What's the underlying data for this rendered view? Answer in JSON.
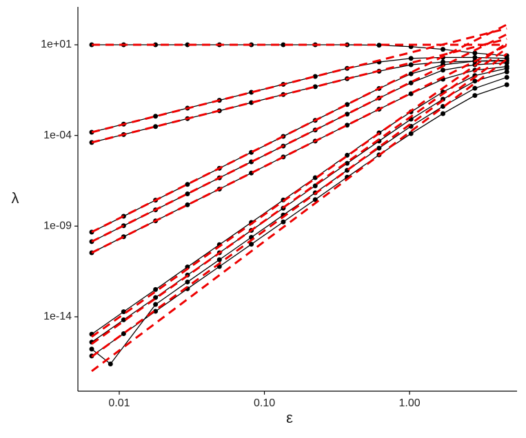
{
  "chart_data": {
    "type": "line",
    "xlabel": "ε",
    "ylabel": "λ",
    "xlog": true,
    "ylog": true,
    "xlim": [
      0.00519,
      5.5
    ],
    "ylim": [
      7.9e-19,
      1230
    ],
    "xticks": [
      {
        "value": 0.01,
        "label": "0.01"
      },
      {
        "value": 0.1,
        "label": "0.10"
      },
      {
        "value": 1,
        "label": "1.00"
      }
    ],
    "yticks": [
      {
        "value": 10,
        "label": "1e+01"
      },
      {
        "value": 0.0001,
        "label": "1e-04"
      },
      {
        "value": 1e-09,
        "label": "1e-09"
      },
      {
        "value": 1e-14,
        "label": "1e-14"
      }
    ],
    "series": [
      {
        "color": "#000000",
        "marker": "circle",
        "dashed": false,
        "x": [
          0.00646,
          0.01072,
          0.01778,
          0.02951,
          0.04898,
          0.08128,
          0.1349,
          0.2239,
          0.3715,
          0.6166,
          1.023,
          1.698,
          2.818,
          4.677
        ],
        "values": [
          10,
          10,
          10,
          10,
          10,
          10,
          10,
          10,
          10,
          9.5,
          7.9,
          5.6,
          3.5,
          2.5
        ]
      },
      {
        "color": "#000000",
        "marker": "circle",
        "dashed": false,
        "x": [
          0.00646,
          0.01072,
          0.01778,
          0.02951,
          0.04898,
          0.08128,
          0.1349,
          0.2239,
          0.3715,
          0.6166,
          1.023,
          1.698,
          2.818,
          4.677
        ],
        "values": [
          0.00015,
          0.00042,
          0.00115,
          0.0032,
          0.0087,
          0.024,
          0.066,
          0.18,
          0.5,
          1.12,
          1.78,
          2.0,
          2.0,
          1.78
        ]
      },
      {
        "color": "#000000",
        "marker": "circle",
        "dashed": false,
        "x": [
          0.00646,
          0.01072,
          0.01778,
          0.02951,
          0.04898,
          0.08128,
          0.1349,
          0.2239,
          0.3715,
          0.6166,
          1.023,
          1.698,
          2.818,
          4.677
        ],
        "values": [
          4.1e-05,
          0.000112,
          0.00031,
          0.00085,
          0.0023,
          0.0065,
          0.018,
          0.049,
          0.135,
          0.35,
          0.79,
          1.12,
          1.26,
          1.26
        ]
      },
      {
        "color": "#000000",
        "marker": "circle",
        "dashed": false,
        "x": [
          0.00646,
          0.01072,
          0.01778,
          0.02951,
          0.04898,
          0.08128,
          0.1349,
          0.2239,
          0.3715,
          0.6166,
          1.023,
          1.698,
          2.818,
          4.677
        ],
        "values": [
          4.7e-10,
          3.5e-09,
          2.7e-08,
          2e-07,
          1.55e-06,
          1.17e-05,
          8.9e-05,
          0.00068,
          0.0051,
          0.039,
          0.25,
          0.79,
          1.26,
          1.41
        ]
      },
      {
        "color": "#000000",
        "marker": "circle",
        "dashed": false,
        "x": [
          0.00646,
          0.01072,
          0.01778,
          0.02951,
          0.04898,
          0.08128,
          0.1349,
          0.2239,
          0.3715,
          0.6166,
          1.023,
          1.698,
          2.818,
          4.677
        ],
        "values": [
          1.4e-10,
          1.05e-09,
          7.9e-09,
          6e-08,
          4.6e-07,
          3.5e-06,
          2.6e-05,
          0.0002,
          0.0015,
          0.0115,
          0.079,
          0.4,
          0.79,
          1.0
        ]
      },
      {
        "color": "#000000",
        "marker": "circle",
        "dashed": false,
        "x": [
          0.00646,
          0.01072,
          0.01778,
          0.02951,
          0.04898,
          0.08128,
          0.1349,
          0.2239,
          0.3715,
          0.6166,
          1.023,
          1.698,
          2.818,
          4.677
        ],
        "values": [
          3.4e-11,
          2.6e-10,
          1.95e-09,
          1.5e-08,
          1.1e-07,
          8.5e-07,
          6.5e-06,
          4.9e-05,
          0.00037,
          0.0028,
          0.02,
          0.126,
          0.4,
          0.63
        ]
      },
      {
        "color": "#000000",
        "marker": "circle",
        "dashed": false,
        "x": [
          0.00646,
          0.01072,
          0.01778,
          0.02951,
          0.04898,
          0.08128,
          0.1349,
          0.2239,
          0.3715,
          0.6166,
          1.023,
          1.698,
          2.818,
          4.677
        ],
        "values": [
          1.1e-15,
          1.9e-14,
          3.2e-13,
          5.6e-12,
          9.5e-11,
          1.6e-09,
          2.75e-08,
          4.7e-07,
          8.1e-06,
          0.00014,
          0.002,
          0.025,
          0.2,
          0.5
        ]
      },
      {
        "color": "#000000",
        "marker": "circle",
        "dashed": false,
        "x": [
          0.00646,
          0.01072,
          0.01778,
          0.02951,
          0.04898,
          0.08128,
          0.1349,
          0.2239,
          0.3715,
          0.6166,
          1.023,
          1.698,
          2.818,
          4.677
        ],
        "values": [
          4e-16,
          6.8e-15,
          1.15e-13,
          2e-12,
          3.4e-11,
          5.8e-10,
          9.8e-09,
          1.66e-07,
          2.9e-06,
          4.9e-05,
          0.00079,
          0.01,
          0.1,
          0.32
        ]
      },
      {
        "color": "#000000",
        "marker": "circle",
        "dashed": false,
        "x": [
          0.00646,
          0.0087,
          0.01778,
          0.02951,
          0.04898,
          0.08128,
          0.1349,
          0.2239,
          0.3715,
          0.6166,
          1.023,
          1.698,
          2.818,
          4.677
        ],
        "values": [
          1.66e-16,
          2.5e-17,
          4.8e-14,
          8.3e-13,
          1.4e-11,
          2.4e-10,
          4.1e-09,
          6.9e-08,
          1.2e-06,
          2e-05,
          0.00032,
          0.004,
          0.04,
          0.16
        ]
      },
      {
        "color": "#000000",
        "marker": "circle",
        "dashed": false,
        "x": [
          0.00646,
          0.01072,
          0.01778,
          0.02951,
          0.04898,
          0.08128,
          0.1349,
          0.2239,
          0.3715,
          0.6166,
          1.023,
          1.698,
          2.818,
          4.677
        ],
        "values": [
          6.9e-17,
          1.17e-15,
          2e-14,
          3.5e-13,
          5.9e-12,
          1e-10,
          1.7e-09,
          2.9e-08,
          5e-07,
          8.5e-06,
          0.000126,
          0.0016,
          0.016,
          0.063
        ]
      },
      {
        "color": "#ee0000",
        "marker": "none",
        "dashed": true,
        "x": [
          0.00646,
          4.677
        ],
        "values": [
          10,
          10
        ]
      },
      {
        "color": "#ee0000",
        "marker": "none",
        "dashed": true,
        "x": [
          0.00646,
          4.677
        ],
        "values": [
          0.00015,
          79
        ]
      },
      {
        "color": "#ee0000",
        "marker": "none",
        "dashed": true,
        "x": [
          0.00646,
          4.677
        ],
        "values": [
          4.1e-05,
          21
        ]
      },
      {
        "color": "#ee0000",
        "marker": "none",
        "dashed": true,
        "x": [
          0.00646,
          4.677
        ],
        "values": [
          4.7e-10,
          130
        ]
      },
      {
        "color": "#ee0000",
        "marker": "none",
        "dashed": true,
        "x": [
          0.00646,
          4.677
        ],
        "values": [
          1.4e-10,
          38
        ]
      },
      {
        "color": "#ee0000",
        "marker": "none",
        "dashed": true,
        "x": [
          0.00646,
          4.677
        ],
        "values": [
          3.4e-11,
          9.3
        ]
      },
      {
        "color": "#ee0000",
        "marker": "none",
        "dashed": true,
        "x": [
          0.00646,
          4.677
        ],
        "values": [
          7.9e-16,
          12.6
        ]
      },
      {
        "color": "#ee0000",
        "marker": "none",
        "dashed": true,
        "x": [
          0.00646,
          4.677
        ],
        "values": [
          3.2e-16,
          6.3
        ]
      },
      {
        "color": "#ee0000",
        "marker": "none",
        "dashed": true,
        "x": [
          0.00646,
          4.677
        ],
        "values": [
          6.3e-17,
          3.2
        ]
      },
      {
        "color": "#ee0000",
        "marker": "none",
        "dashed": true,
        "x": [
          0.00646,
          4.677
        ],
        "values": [
          1e-17,
          1.6
        ]
      }
    ]
  }
}
